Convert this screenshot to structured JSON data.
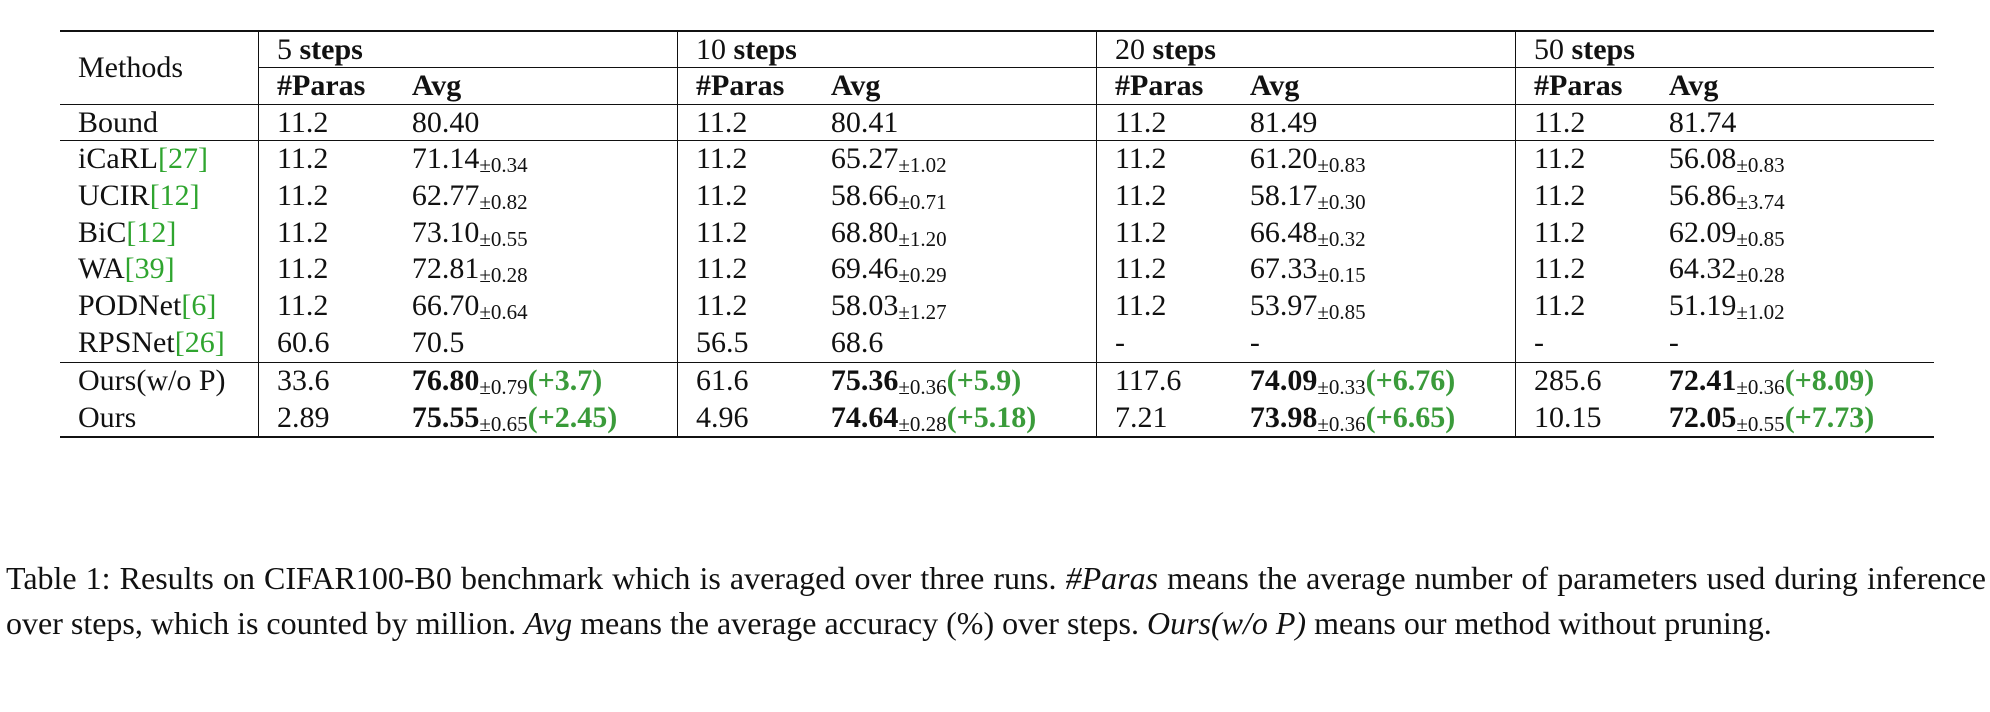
{
  "table": {
    "methods_header": "Methods",
    "groups": [
      {
        "label": "5",
        "suffix": "steps"
      },
      {
        "label": "10",
        "suffix": "steps"
      },
      {
        "label": "20",
        "suffix": "steps"
      },
      {
        "label": "50",
        "suffix": "steps"
      }
    ],
    "sub_headers": {
      "paras": "#Paras",
      "avg": "Avg"
    },
    "bound": {
      "method": "Bound",
      "cells": [
        {
          "paras": "11.2",
          "avg": "80.40"
        },
        {
          "paras": "11.2",
          "avg": "80.41"
        },
        {
          "paras": "11.2",
          "avg": "81.49"
        },
        {
          "paras": "11.2",
          "avg": "81.74"
        }
      ]
    },
    "baselines": [
      {
        "method": "iCaRL",
        "cite": "[27]",
        "cells": [
          {
            "paras": "11.2",
            "avg": "71.14",
            "std": "±0.34"
          },
          {
            "paras": "11.2",
            "avg": "65.27",
            "std": "±1.02"
          },
          {
            "paras": "11.2",
            "avg": "61.20",
            "std": "±0.83"
          },
          {
            "paras": "11.2",
            "avg": "56.08",
            "std": "±0.83"
          }
        ]
      },
      {
        "method": "UCIR",
        "cite": "[12]",
        "cells": [
          {
            "paras": "11.2",
            "avg": "62.77",
            "std": "±0.82"
          },
          {
            "paras": "11.2",
            "avg": "58.66",
            "std": "±0.71"
          },
          {
            "paras": "11.2",
            "avg": "58.17",
            "std": "±0.30"
          },
          {
            "paras": "11.2",
            "avg": "56.86",
            "std": "±3.74"
          }
        ]
      },
      {
        "method": "BiC",
        "cite": "[12]",
        "cells": [
          {
            "paras": "11.2",
            "avg": "73.10",
            "std": "±0.55"
          },
          {
            "paras": "11.2",
            "avg": "68.80",
            "std": "±1.20"
          },
          {
            "paras": "11.2",
            "avg": "66.48",
            "std": "±0.32"
          },
          {
            "paras": "11.2",
            "avg": "62.09",
            "std": "±0.85"
          }
        ]
      },
      {
        "method": "WA",
        "cite": "[39]",
        "cells": [
          {
            "paras": "11.2",
            "avg": "72.81",
            "std": "±0.28"
          },
          {
            "paras": "11.2",
            "avg": "69.46",
            "std": "±0.29"
          },
          {
            "paras": "11.2",
            "avg": "67.33",
            "std": "±0.15"
          },
          {
            "paras": "11.2",
            "avg": "64.32",
            "std": "±0.28"
          }
        ]
      },
      {
        "method": "PODNet",
        "cite": "[6]",
        "cells": [
          {
            "paras": "11.2",
            "avg": "66.70",
            "std": "±0.64"
          },
          {
            "paras": "11.2",
            "avg": "58.03",
            "std": "±1.27"
          },
          {
            "paras": "11.2",
            "avg": "53.97",
            "std": "±0.85"
          },
          {
            "paras": "11.2",
            "avg": "51.19",
            "std": "±1.02"
          }
        ]
      },
      {
        "method": "RPSNet",
        "cite": "[26]",
        "cells": [
          {
            "paras": "60.6",
            "avg": "70.5",
            "std": ""
          },
          {
            "paras": "56.5",
            "avg": "68.6",
            "std": ""
          },
          {
            "paras": "-",
            "avg": "-",
            "std": ""
          },
          {
            "paras": "-",
            "avg": "-",
            "std": ""
          }
        ]
      }
    ],
    "ours": [
      {
        "method": "Ours(w/o P)",
        "bold_paras": false,
        "cells": [
          {
            "paras": "33.6",
            "avg": "76.80",
            "std": "±0.79",
            "gain": "(+3.7)"
          },
          {
            "paras": "61.6",
            "avg": "75.36",
            "std": "±0.36",
            "gain": "(+5.9)"
          },
          {
            "paras": "117.6",
            "avg": "74.09",
            "std": "±0.33",
            "gain": "(+6.76)"
          },
          {
            "paras": "285.6",
            "avg": "72.41",
            "std": "±0.36",
            "gain": "(+8.09)"
          }
        ]
      },
      {
        "method": "Ours",
        "bold_paras": true,
        "cells": [
          {
            "paras": "2.89",
            "avg": "75.55",
            "std": "±0.65",
            "gain": "(+2.45)"
          },
          {
            "paras": "4.96",
            "avg": "74.64",
            "std": "±0.28",
            "gain": "(+5.18)"
          },
          {
            "paras": "7.21",
            "avg": "73.98",
            "std": "±0.36",
            "gain": "(+6.65)"
          },
          {
            "paras": "10.15",
            "avg": "72.05",
            "std": "±0.55",
            "gain": "(+7.73)"
          }
        ]
      }
    ]
  },
  "caption": {
    "part1": "Table 1: Results on CIFAR100-B0 benchmark which is averaged over three runs. ",
    "term_paras": "#Paras",
    "part2": " means the average number of parameters used during inference over steps, which is counted by million. ",
    "term_avg": "Avg",
    "part3": " means the average accuracy (%) over steps. ",
    "term_ours": "Ours(w/o P)",
    "part4": " means our method without pruning."
  },
  "colors": {
    "gain": "#3a9b3a",
    "cite": "#2fa52f"
  }
}
